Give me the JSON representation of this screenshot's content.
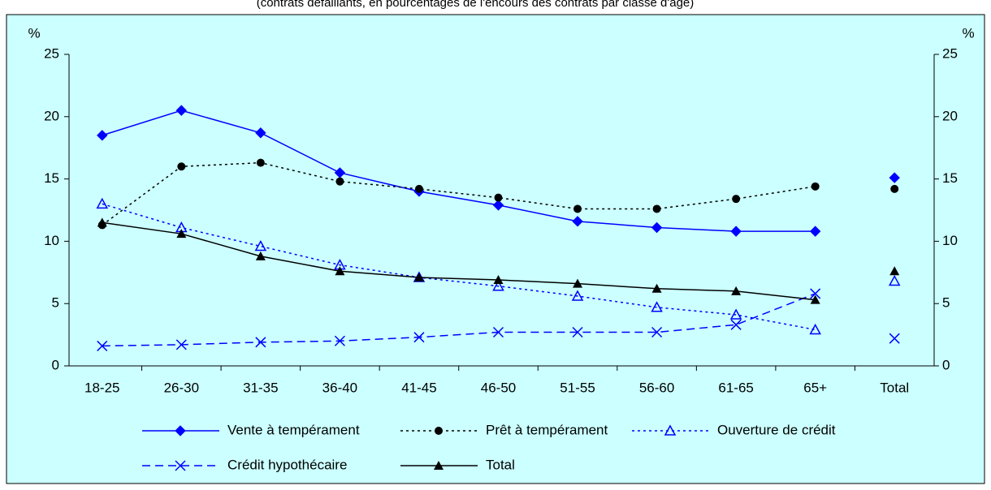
{
  "chart_data": {
    "type": "line",
    "subtitle": "(contrats défaillants, en pourcentages de l'encours des contrats par classe d'âge)",
    "ylabel": "%",
    "y2label": "%",
    "categories": [
      "18-25",
      "26-30",
      "31-35",
      "36-40",
      "41-45",
      "46-50",
      "51-55",
      "56-60",
      "61-65",
      "65+",
      "Total"
    ],
    "separate_last_category": true,
    "ylim": [
      0,
      25
    ],
    "yticks": [
      0,
      5,
      10,
      15,
      20,
      25
    ],
    "y2lim": [
      0,
      25
    ],
    "y2ticks": [
      0,
      5,
      10,
      15,
      20,
      25
    ],
    "grid": false,
    "series": [
      {
        "name": "Vente à tempérament",
        "color": "#0000ff",
        "dash": "solid",
        "marker": "diamond",
        "values": [
          18.5,
          20.5,
          18.7,
          15.5,
          14.0,
          12.9,
          11.6,
          11.1,
          10.8,
          10.8,
          15.1
        ]
      },
      {
        "name": "Prêt à tempérament",
        "color": "#000000",
        "dash": "dotted",
        "marker": "circle",
        "values": [
          11.3,
          16.0,
          16.3,
          14.8,
          14.2,
          13.5,
          12.6,
          12.6,
          13.4,
          14.4,
          14.2
        ]
      },
      {
        "name": "Ouverture de crédit",
        "color": "#0000ff",
        "dash": "dotted",
        "marker": "open-triangle",
        "values": [
          13.0,
          11.1,
          9.6,
          8.1,
          7.1,
          6.4,
          5.6,
          4.7,
          4.1,
          2.9,
          6.8
        ]
      },
      {
        "name": "Crédit hypothécaire",
        "color": "#0000ff",
        "dash": "dashed",
        "marker": "x",
        "values": [
          1.6,
          1.7,
          1.9,
          2.0,
          2.3,
          2.7,
          2.7,
          2.7,
          3.3,
          5.8,
          2.2
        ]
      },
      {
        "name": "Total",
        "color": "#000000",
        "dash": "solid",
        "marker": "triangle",
        "values": [
          11.5,
          10.6,
          8.8,
          7.6,
          7.1,
          6.9,
          6.6,
          6.2,
          6.0,
          5.3,
          7.6
        ]
      }
    ]
  }
}
